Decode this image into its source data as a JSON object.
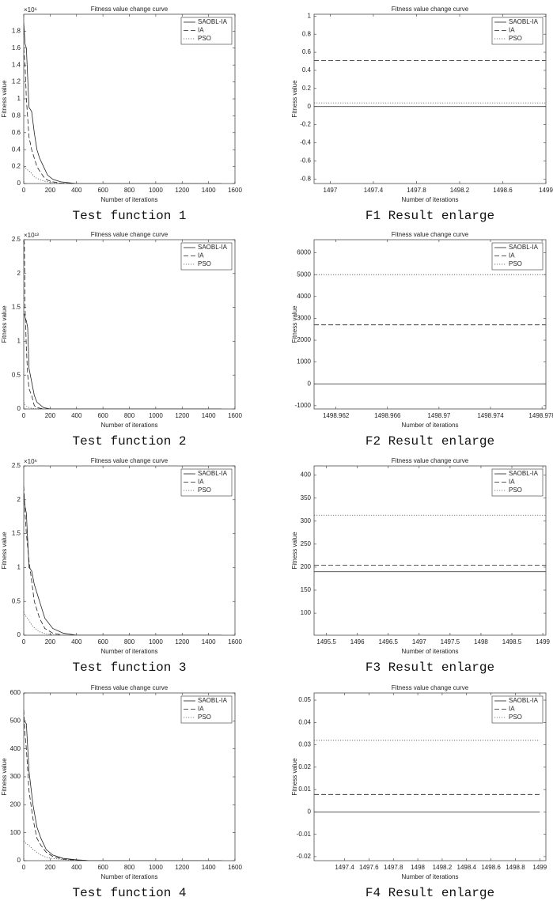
{
  "chart_data": [
    {
      "type": "line",
      "title": "Fitness value change curve",
      "xlabel": "Number of iterations",
      "ylabel": "Fitness value",
      "y_multiplier": "×10⁶",
      "caption": "Test function 1",
      "x": [
        0,
        10,
        20,
        40,
        60,
        80,
        100,
        120,
        150,
        180,
        220,
        280,
        400,
        1500
      ],
      "series": [
        {
          "name": "SAOBL-IA",
          "color": "#222222",
          "dash": "solid",
          "values": [
            1900000,
            1650000,
            1600000,
            900000,
            850000,
            600000,
            400000,
            300000,
            200000,
            100000,
            50000,
            20000,
            0,
            0
          ]
        },
        {
          "name": "IA",
          "color": "#222222",
          "dash": "dashed",
          "values": [
            1600000,
            1400000,
            1000000,
            550000,
            400000,
            300000,
            200000,
            150000,
            80000,
            40000,
            20000,
            5000,
            0,
            0
          ]
        },
        {
          "name": "PSO",
          "color": "#555555",
          "dash": "dotted",
          "values": [
            200000,
            190000,
            170000,
            150000,
            120000,
            80000,
            60000,
            50000,
            30000,
            20000,
            10000,
            5000,
            0,
            0
          ]
        }
      ],
      "xlim": [
        0,
        1600
      ],
      "xticks": [
        0,
        200,
        400,
        600,
        800,
        1000,
        1200,
        1400,
        1600
      ],
      "ylim": [
        0,
        2000000
      ],
      "yticks": [
        0,
        {
          "value": 200000,
          "label": "0.2"
        },
        {
          "value": 400000,
          "label": "0.4"
        },
        {
          "value": 600000,
          "label": "0.6"
        },
        {
          "value": 800000,
          "label": "0.8"
        },
        {
          "value": 1000000,
          "label": "1"
        },
        {
          "value": 1200000,
          "label": "1.2"
        },
        {
          "value": 1400000,
          "label": "1.4"
        },
        {
          "value": 1600000,
          "label": "1.6"
        },
        {
          "value": 1800000,
          "label": "1.8"
        }
      ],
      "legend": "upper right"
    },
    {
      "type": "line",
      "title": "Fitness value change curve",
      "xlabel": "Number of iterations",
      "ylabel": "Fitness value",
      "caption": "F1 Result enlarge",
      "x": [
        1496.85,
        1499
      ],
      "series": [
        {
          "name": "SAOBL-IA",
          "color": "#222222",
          "dash": "solid",
          "values": [
            0,
            0
          ]
        },
        {
          "name": "IA",
          "color": "#222222",
          "dash": "dashed",
          "values": [
            0.51,
            0.51
          ]
        },
        {
          "name": "PSO",
          "color": "#555555",
          "dash": "dotted",
          "values": [
            0.04,
            0.04
          ]
        }
      ],
      "xlim": [
        1496.85,
        1499
      ],
      "xticks": [
        1497,
        1497.4,
        1497.8,
        1498.2,
        1498.6,
        1499
      ],
      "ylim": [
        -0.85,
        1.02
      ],
      "yticks": [
        -0.8,
        -0.6,
        -0.4,
        -0.2,
        0,
        0.2,
        0.4,
        0.6,
        0.8,
        1
      ],
      "legend": "upper right"
    },
    {
      "type": "line",
      "title": "Fitness value change curve",
      "xlabel": "Number of iterations",
      "ylabel": "Fitness value",
      "y_multiplier": "×10¹³",
      "caption": "Test function 2",
      "x": [
        0,
        5,
        10,
        20,
        30,
        40,
        60,
        80,
        100,
        150,
        200,
        1500
      ],
      "series": [
        {
          "name": "SAOBL-IA",
          "color": "#222222",
          "dash": "solid",
          "values": [
            14000000000000,
            14000000000000,
            13500000000000,
            13000000000000,
            12000000000000,
            6000000000000,
            4000000000000,
            2000000000000,
            1000000000000,
            200000000000,
            0,
            0
          ]
        },
        {
          "name": "IA",
          "color": "#222222",
          "dash": "dashed",
          "values": [
            25000000000000,
            24500000000000,
            15000000000000,
            9000000000000,
            5000000000000,
            3000000000000,
            2000000000000,
            500000000000,
            200000000000,
            0,
            0,
            0
          ]
        },
        {
          "name": "PSO",
          "color": "#555555",
          "dash": "dotted",
          "values": [
            1000000000000,
            800000000000,
            600000000000,
            400000000000,
            300000000000,
            200000000000,
            100000000000,
            50000000000,
            20000000000,
            0,
            0,
            0
          ]
        }
      ],
      "xlim": [
        0,
        1600
      ],
      "xticks": [
        0,
        200,
        400,
        600,
        800,
        1000,
        1200,
        1400,
        1600
      ],
      "ylim": [
        0,
        25000000000000
      ],
      "yticks": [
        0,
        {
          "value": 5000000000000,
          "label": "0.5"
        },
        {
          "value": 10000000000000,
          "label": "1"
        },
        {
          "value": 15000000000000,
          "label": "1.5"
        },
        {
          "value": 20000000000000,
          "label": "2"
        },
        {
          "value": 25000000000000,
          "label": "2.5"
        }
      ],
      "legend": "upper right"
    },
    {
      "type": "line",
      "title": "Fitness value change curve",
      "xlabel": "Number of iterations",
      "ylabel": "Fitness value",
      "caption": "F2 Result enlarge",
      "x": [
        1498.9603,
        1498.9783
      ],
      "series": [
        {
          "name": "SAOBL-IA",
          "color": "#222222",
          "dash": "solid",
          "values": [
            0,
            0
          ]
        },
        {
          "name": "IA",
          "color": "#222222",
          "dash": "dashed",
          "values": [
            2700,
            2700
          ]
        },
        {
          "name": "PSO",
          "color": "#555555",
          "dash": "dotted",
          "values": [
            5000,
            5000
          ]
        }
      ],
      "xlim": [
        1498.9603,
        1498.9783
      ],
      "xticks": [
        1498.962,
        1498.966,
        1498.97,
        1498.974,
        1498.978
      ],
      "ylim": [
        -1150,
        6600
      ],
      "yticks": [
        -1000,
        0,
        1000,
        2000,
        3000,
        4000,
        5000,
        6000
      ],
      "legend": "upper right"
    },
    {
      "type": "line",
      "title": "Fitness value change curve",
      "xlabel": "Number of iterations",
      "ylabel": "Fitness value",
      "y_multiplier": "×10⁶",
      "caption": "Test function 3",
      "x": [
        0,
        10,
        20,
        40,
        60,
        80,
        120,
        160,
        220,
        300,
        400,
        1500
      ],
      "series": [
        {
          "name": "SAOBL-IA",
          "color": "#222222",
          "dash": "solid",
          "values": [
            2100000,
            1900000,
            1800000,
            1000000,
            950000,
            750000,
            500000,
            250000,
            100000,
            30000,
            0,
            0
          ]
        },
        {
          "name": "IA",
          "color": "#222222",
          "dash": "dashed",
          "values": [
            2200000,
            1800000,
            1500000,
            1100000,
            800000,
            500000,
            250000,
            100000,
            30000,
            0,
            0,
            0
          ]
        },
        {
          "name": "PSO",
          "color": "#555555",
          "dash": "dotted",
          "values": [
            350000,
            300000,
            270000,
            220000,
            150000,
            110000,
            50000,
            25000,
            5000,
            0,
            0,
            0
          ]
        }
      ],
      "xlim": [
        0,
        1600
      ],
      "xticks": [
        0,
        200,
        400,
        600,
        800,
        1000,
        1200,
        1400,
        1600
      ],
      "ylim": [
        0,
        2500000
      ],
      "yticks": [
        0,
        {
          "value": 500000,
          "label": "0.5"
        },
        {
          "value": 1000000,
          "label": "1"
        },
        {
          "value": 1500000,
          "label": "1.5"
        },
        {
          "value": 2000000,
          "label": "2"
        },
        {
          "value": 2500000,
          "label": "2.5"
        }
      ],
      "legend": "upper right"
    },
    {
      "type": "line",
      "title": "Fitness value change curve",
      "xlabel": "Number of iterations",
      "ylabel": "Fitness value",
      "caption": "F3 Result enlarge",
      "x": [
        1495.3,
        1499.05
      ],
      "series": [
        {
          "name": "SAOBL-IA",
          "color": "#222222",
          "dash": "solid",
          "values": [
            190,
            190
          ]
        },
        {
          "name": "IA",
          "color": "#222222",
          "dash": "dashed",
          "values": [
            204,
            204
          ]
        },
        {
          "name": "PSO",
          "color": "#555555",
          "dash": "dotted",
          "values": [
            313,
            313
          ]
        }
      ],
      "xlim": [
        1495.3,
        1499.05
      ],
      "xticks": [
        1495.5,
        1496,
        1496.5,
        1497,
        1497.5,
        1498,
        1498.5,
        1499
      ],
      "ylim": [
        52,
        420
      ],
      "yticks": [
        100,
        150,
        200,
        250,
        300,
        350,
        400
      ],
      "legend": "upper right"
    },
    {
      "type": "line",
      "title": "Fitness value change curve",
      "xlabel": "Number of iterations",
      "ylabel": "Fitness value",
      "caption": "Test function 4",
      "x": [
        0,
        10,
        20,
        40,
        70,
        100,
        130,
        170,
        220,
        300,
        400,
        500,
        1500
      ],
      "series": [
        {
          "name": "SAOBL-IA",
          "color": "#222222",
          "dash": "solid",
          "values": [
            500,
            495,
            490,
            320,
            200,
            120,
            80,
            40,
            20,
            8,
            3,
            0,
            0
          ]
        },
        {
          "name": "IA",
          "color": "#222222",
          "dash": "dashed",
          "values": [
            540,
            450,
            400,
            250,
            150,
            80,
            55,
            30,
            15,
            5,
            2,
            0,
            0
          ]
        },
        {
          "name": "PSO",
          "color": "#555555",
          "dash": "dotted",
          "values": [
            70,
            65,
            60,
            55,
            40,
            30,
            20,
            12,
            8,
            4,
            0,
            0,
            0
          ]
        }
      ],
      "xlim": [
        0,
        1600
      ],
      "xticks": [
        0,
        200,
        400,
        600,
        800,
        1000,
        1200,
        1400,
        1600
      ],
      "ylim": [
        0,
        600
      ],
      "yticks": [
        0,
        100,
        200,
        300,
        400,
        500,
        600
      ],
      "legend": "upper right"
    },
    {
      "type": "line",
      "title": "Fitness value change curve",
      "xlabel": "Number of iterations",
      "ylabel": "Fitness value",
      "caption": "F4 Result enlarge",
      "x": [
        1497.15,
        1499
      ],
      "series": [
        {
          "name": "SAOBL-IA",
          "color": "#222222",
          "dash": "solid",
          "values": [
            0,
            0
          ]
        },
        {
          "name": "IA",
          "color": "#222222",
          "dash": "dashed",
          "values": [
            0.0078,
            0.0078
          ]
        },
        {
          "name": "PSO",
          "color": "#555555",
          "dash": "dotted",
          "values": [
            0.032,
            0.032
          ]
        }
      ],
      "xlim": [
        1497.15,
        1499.05
      ],
      "xticks": [
        1497.4,
        1497.6,
        1497.8,
        1498,
        1498.2,
        1498.4,
        1498.6,
        1498.8,
        1499
      ],
      "ylim": [
        -0.0218,
        0.0532
      ],
      "yticks": [
        -0.02,
        -0.01,
        0,
        0.01,
        0.02,
        0.03,
        0.04,
        0.05
      ],
      "legend": "upper right"
    }
  ]
}
